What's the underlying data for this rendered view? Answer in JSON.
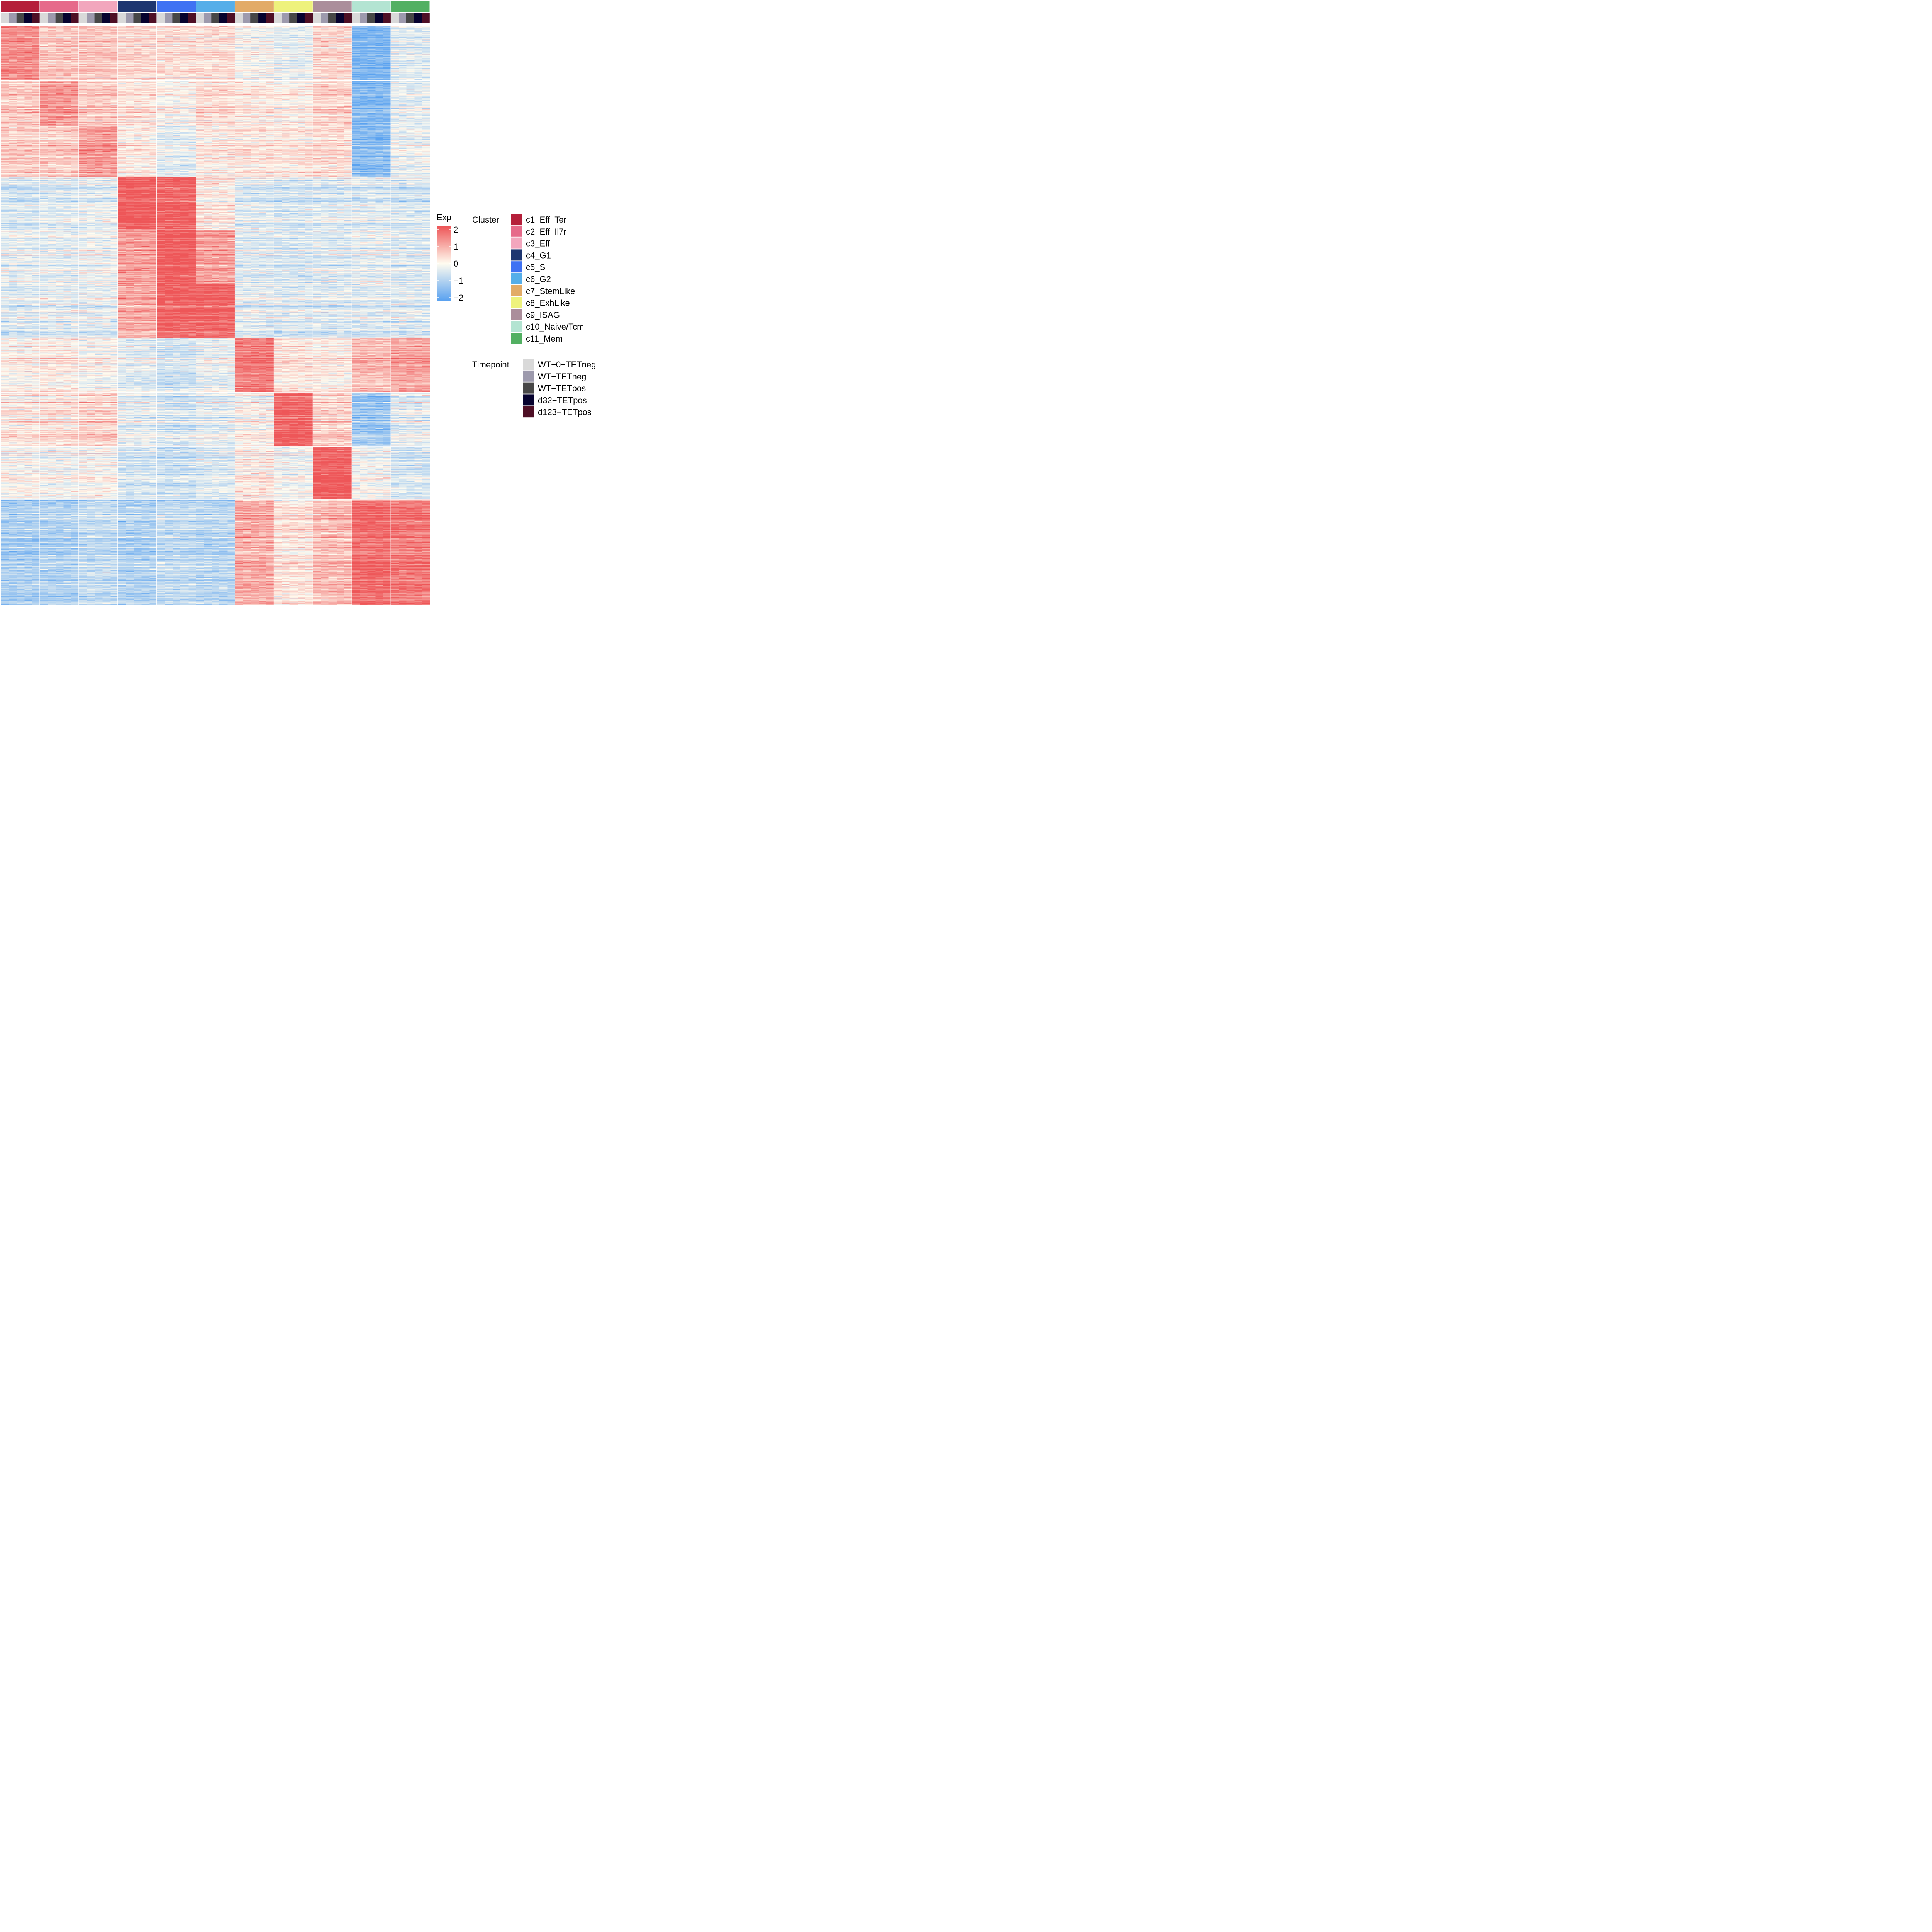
{
  "chart_data": {
    "type": "heatmap",
    "title": "",
    "xlabel": "",
    "ylabel": "",
    "color_scale": {
      "title": "Exp",
      "min": -2,
      "max": 2,
      "ticks": [
        "2",
        "1",
        "0",
        "−1",
        "−2"
      ],
      "tick_values": [
        2,
        1,
        0,
        -1,
        -2
      ],
      "low_color": "#5aa2f0",
      "mid_color": "#fffcf0",
      "high_color": "#ee5658"
    },
    "cluster_legend_title": "Cluster",
    "timepoint_legend_title": "Timepoint",
    "clusters": [
      {
        "name": "c1_Eff_Ter",
        "color": "#b51f3a"
      },
      {
        "name": "c2_Eff_Il7r",
        "color": "#e66a8a"
      },
      {
        "name": "c3_Eff",
        "color": "#f2a6bd"
      },
      {
        "name": "c4_G1",
        "color": "#1d3570"
      },
      {
        "name": "c5_S",
        "color": "#3f72f3"
      },
      {
        "name": "c6_G2",
        "color": "#55aee9"
      },
      {
        "name": "c7_StemLike",
        "color": "#e2ab67"
      },
      {
        "name": "c8_ExhLike",
        "color": "#eef27c"
      },
      {
        "name": "c9_ISAG",
        "color": "#ab8e9b"
      },
      {
        "name": "c10_Naive/Tcm",
        "color": "#b3e4d2"
      },
      {
        "name": "c11_Mem",
        "color": "#52b062"
      }
    ],
    "timepoints": [
      {
        "name": "WT−0−TETneg",
        "color": "#d9d9d9"
      },
      {
        "name": "WT−TETneg",
        "color": "#9d9aad"
      },
      {
        "name": "WT−TETpos",
        "color": "#474747"
      },
      {
        "name": "d32−TETpos",
        "color": "#06022e"
      },
      {
        "name": "d123−TETpos",
        "color": "#4e0f25"
      }
    ],
    "gene_blocks": [
      {
        "name": "g1",
        "rows": 180,
        "means": [
          1.3,
          0.6,
          0.6,
          0.4,
          0.3,
          0.3,
          -0.1,
          -0.3,
          0.4,
          -1.6,
          -0.4
        ]
      },
      {
        "name": "g2",
        "rows": 150,
        "means": [
          0.6,
          1.2,
          0.6,
          0.3,
          0.0,
          0.4,
          0.2,
          0.1,
          0.5,
          -1.5,
          -0.3
        ]
      },
      {
        "name": "g3",
        "rows": 170,
        "means": [
          0.6,
          0.6,
          1.2,
          0.2,
          -0.3,
          0.2,
          0.3,
          0.3,
          0.4,
          -1.4,
          -0.2
        ]
      },
      {
        "name": "g4",
        "rows": 175,
        "means": [
          -0.5,
          -0.4,
          -0.3,
          2.0,
          1.9,
          0.2,
          -0.4,
          -0.5,
          -0.4,
          -0.4,
          -0.5
        ]
      },
      {
        "name": "g5",
        "rows": 180,
        "means": [
          -0.3,
          -0.3,
          -0.2,
          1.1,
          2.0,
          1.1,
          -0.4,
          -0.5,
          -0.4,
          -0.3,
          -0.4
        ]
      },
      {
        "name": "g6",
        "rows": 180,
        "means": [
          -0.4,
          -0.3,
          -0.3,
          1.0,
          1.9,
          1.9,
          -0.3,
          -0.4,
          -0.4,
          -0.4,
          -0.4
        ]
      },
      {
        "name": "g7",
        "rows": 180,
        "means": [
          0.1,
          0.2,
          0.0,
          -0.3,
          -0.5,
          -0.2,
          1.6,
          0.3,
          0.2,
          0.8,
          1.1
        ]
      },
      {
        "name": "g8",
        "rows": 180,
        "means": [
          0.2,
          0.3,
          0.5,
          -0.3,
          -0.5,
          -0.3,
          0.0,
          1.9,
          0.5,
          -1.2,
          -0.3
        ]
      },
      {
        "name": "g9",
        "rows": 175,
        "means": [
          0.0,
          -0.1,
          0.0,
          -0.5,
          -0.6,
          -0.4,
          0.2,
          -0.1,
          2.0,
          -0.1,
          -0.5
        ]
      },
      {
        "name": "g10",
        "rows": 350,
        "means": [
          -1.0,
          -0.9,
          -0.7,
          -0.9,
          -0.7,
          -0.8,
          1.0,
          0.3,
          0.8,
          1.8,
          1.6
        ]
      }
    ]
  }
}
